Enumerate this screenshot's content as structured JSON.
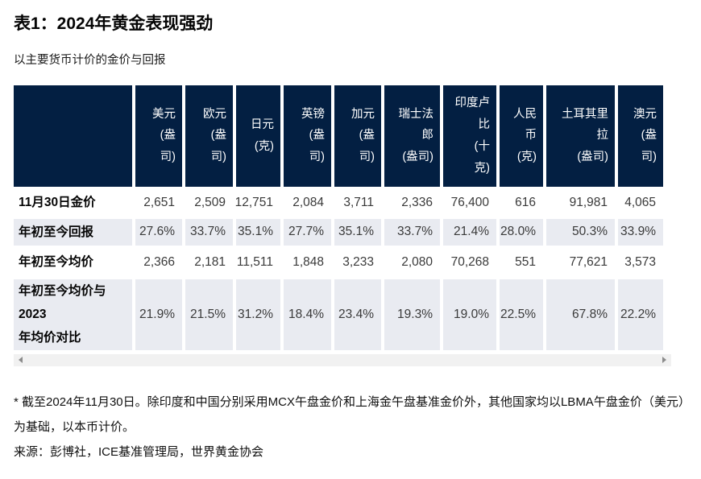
{
  "page": {
    "title": "表1：2024年黄金表现强劲",
    "subtitle": "以主要货币计价的金价与回报",
    "footnote": "* 截至2024年11月30日。除印度和中国分别采用MCX午盘金价和上海金午盘基准金价外，其他国家均以LBMA午盘金价（美元）为基础，以本币计价。",
    "source": "来源：彭博社，ICE基准管理局，世界黄金协会"
  },
  "colors": {
    "header_bg": "#031f42",
    "header_text": "#ffffff",
    "stripe_bg": "#e9ebf1",
    "value_text": "#3a3a3a",
    "scrollbar_track": "#f1f1f1",
    "scrollbar_arrow": "#8b8b8b"
  },
  "table": {
    "corner_label": "",
    "columns": [
      {
        "name": "usd",
        "label": "美元\n(盎\n司)"
      },
      {
        "name": "eur",
        "label": "欧元\n(盎\n司)"
      },
      {
        "name": "jpy",
        "label": "日元\n(克)"
      },
      {
        "name": "gbp",
        "label": "英镑\n(盎\n司)"
      },
      {
        "name": "cad",
        "label": "加元\n(盎\n司)"
      },
      {
        "name": "chf",
        "label": "瑞士法\n郎\n(盎司)"
      },
      {
        "name": "inr",
        "label": "印度卢\n比\n(十\n克)"
      },
      {
        "name": "rmb",
        "label": "人民\n币\n(克)"
      },
      {
        "name": "try",
        "label": "土耳其里\n拉\n(盎司)"
      },
      {
        "name": "aud",
        "label": "澳元\n(盎\n司)"
      }
    ],
    "rows": [
      {
        "label": "11月30日金价",
        "striped": false,
        "values": [
          "2,651",
          "2,509",
          "12,751",
          "2,084",
          "3,711",
          "2,336",
          "76,400",
          "616",
          "91,981",
          "4,065"
        ]
      },
      {
        "label": "年初至今回报",
        "striped": true,
        "values": [
          "27.6%",
          "33.7%",
          "35.1%",
          "27.7%",
          "35.1%",
          "33.7%",
          "21.4%",
          "28.0%",
          "50.3%",
          "33.9%"
        ]
      },
      {
        "label": "年初至今均价",
        "striped": false,
        "values": [
          "2,366",
          "2,181",
          "11,511",
          "1,848",
          "3,233",
          "2,080",
          "70,268",
          "551",
          "77,621",
          "3,573"
        ]
      },
      {
        "label": "年初至今均价与\n2023\n年均价对比",
        "striped": true,
        "values": [
          "21.9%",
          "21.5%",
          "31.2%",
          "18.4%",
          "23.4%",
          "19.3%",
          "19.0%",
          "22.5%",
          "67.8%",
          "22.2%"
        ]
      }
    ]
  },
  "chart_data": {
    "type": "table",
    "title": "表1：2024年黄金表现强劲",
    "subtitle": "以主要货币计价的金价与回报",
    "categories": [
      "美元 (盎司)",
      "欧元 (盎司)",
      "日元 (克)",
      "英镑 (盎司)",
      "加元 (盎司)",
      "瑞士法郎 (盎司)",
      "印度卢比 (十克)",
      "人民币 (克)",
      "土耳其里拉 (盎司)",
      "澳元 (盎司)"
    ],
    "series": [
      {
        "name": "11月30日金价",
        "values": [
          2651,
          2509,
          12751,
          2084,
          3711,
          2336,
          76400,
          616,
          91981,
          4065
        ]
      },
      {
        "name": "年初至今回报",
        "values": [
          "27.6%",
          "33.7%",
          "35.1%",
          "27.7%",
          "35.1%",
          "33.7%",
          "21.4%",
          "28.0%",
          "50.3%",
          "33.9%"
        ]
      },
      {
        "name": "年初至今均价",
        "values": [
          2366,
          2181,
          11511,
          1848,
          3233,
          2080,
          70268,
          551,
          77621,
          3573
        ]
      },
      {
        "name": "年初至今均价与2023年均价对比",
        "values": [
          "21.9%",
          "21.5%",
          "31.2%",
          "18.4%",
          "23.4%",
          "19.3%",
          "19.0%",
          "22.5%",
          "67.8%",
          "22.2%"
        ]
      }
    ],
    "footnote": "* 截至2024年11月30日。除印度和中国分别采用MCX午盘金价和上海金午盘基准金价外，其他国家均以LBMA午盘金价（美元）为基础，以本币计价。",
    "source": "来源：彭博社，ICE基准管理局，世界黄金协会"
  }
}
